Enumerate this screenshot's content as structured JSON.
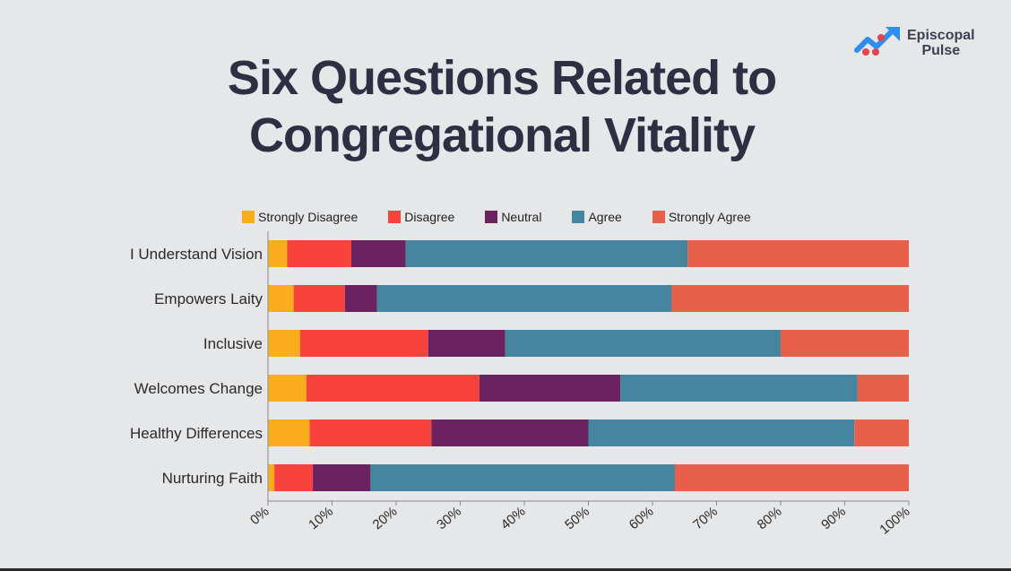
{
  "logo": {
    "line1": "Episcopal",
    "line2": "Pulse"
  },
  "chart_data": {
    "type": "bar",
    "orientation": "horizontal",
    "stacked": true,
    "title_lines": [
      "Six Questions Related to",
      "Congregational Vitality"
    ],
    "categories": [
      "I Understand Vision",
      "Empowers Laity",
      "Inclusive",
      "Welcomes Change",
      "Healthy Differences",
      "Nurturing Faith"
    ],
    "series": [
      {
        "name": "Strongly Disagree",
        "color": "#f9ad1c",
        "values": [
          3,
          4,
          5,
          6,
          6.5,
          1
        ]
      },
      {
        "name": "Disagree",
        "color": "#f7433c",
        "values": [
          10,
          8,
          20,
          27,
          19,
          6
        ]
      },
      {
        "name": "Neutral",
        "color": "#6b2260",
        "values": [
          8.5,
          5,
          12,
          22,
          24.5,
          9
        ]
      },
      {
        "name": "Agree",
        "color": "#45859f",
        "values": [
          44,
          46,
          43,
          37,
          41.5,
          47.5
        ]
      },
      {
        "name": "Strongly Agree",
        "color": "#e8604a",
        "values": [
          34.5,
          37,
          20,
          8,
          8.5,
          36.5
        ]
      }
    ],
    "xlim": [
      0,
      100
    ],
    "xticks": [
      "0%",
      "10%",
      "20%",
      "30%",
      "40%",
      "50%",
      "60%",
      "70%",
      "80%",
      "90%",
      "100%"
    ],
    "grid": false,
    "legend_position": "top"
  }
}
